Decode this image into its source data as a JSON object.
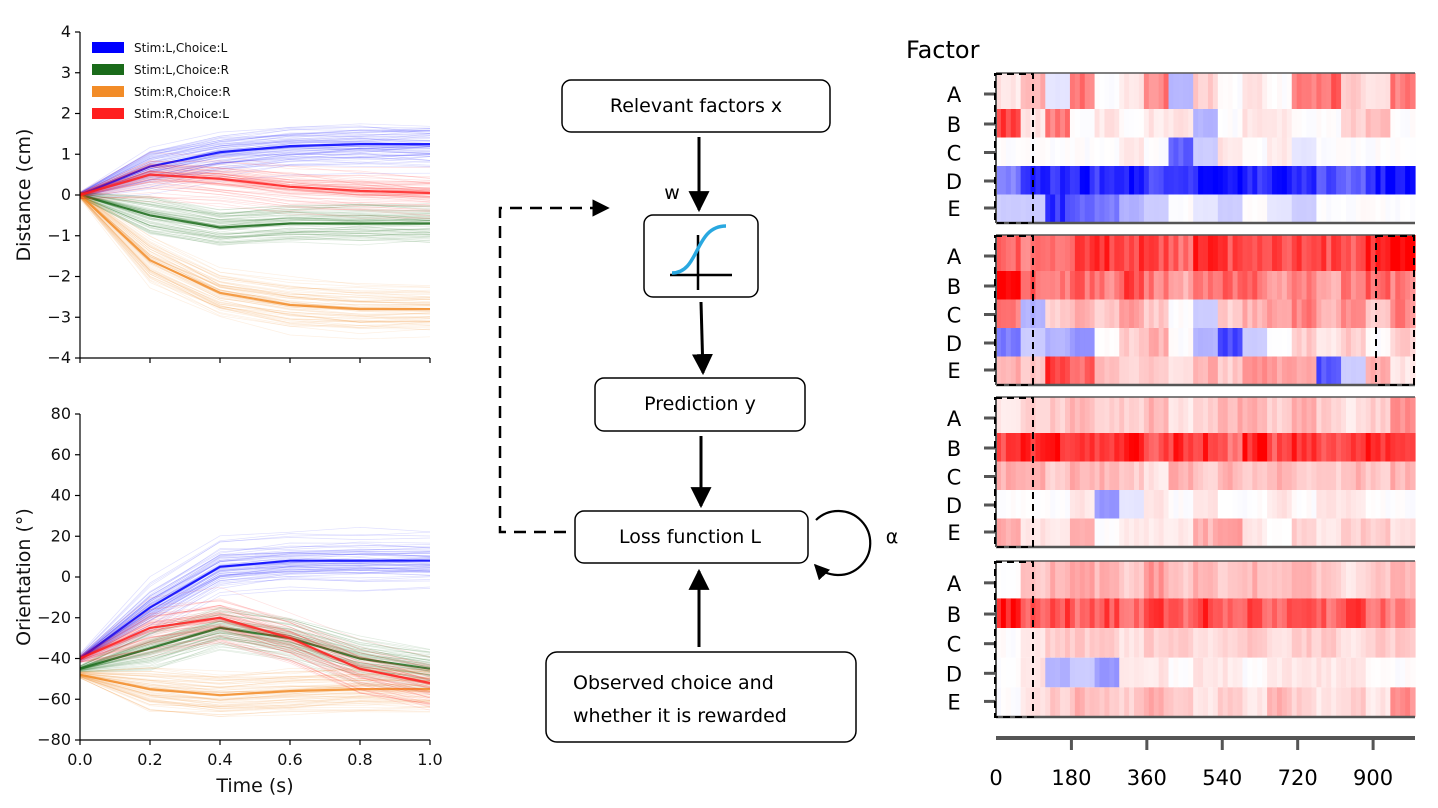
{
  "chart_data": [
    {
      "type": "line",
      "ylabel": "Distance (cm)",
      "xlabel": "",
      "xlim": [
        0.0,
        1.0
      ],
      "ylim": [
        -4,
        4
      ],
      "xticks": [],
      "yticks": [
        "4",
        "3",
        "2",
        "1",
        "0",
        "−1",
        "−2",
        "−3",
        "−4"
      ],
      "legend_position": "top-left",
      "series": [
        {
          "name": "Stim:L,Choice:L",
          "color": "#0000ff",
          "x": [
            0.0,
            0.2,
            0.4,
            0.6,
            0.8,
            1.0
          ],
          "y": [
            0,
            0.7,
            1.05,
            1.2,
            1.25,
            1.25
          ]
        },
        {
          "name": "Stim:L,Choice:R",
          "color": "#1a6b1a",
          "x": [
            0.0,
            0.2,
            0.4,
            0.6,
            0.8,
            1.0
          ],
          "y": [
            0,
            -0.5,
            -0.8,
            -0.7,
            -0.7,
            -0.7
          ]
        },
        {
          "name": "Stim:R,Choice:R",
          "color": "#f28c28",
          "x": [
            0.0,
            0.2,
            0.4,
            0.6,
            0.8,
            1.0
          ],
          "y": [
            0,
            -1.6,
            -2.4,
            -2.7,
            -2.8,
            -2.8
          ]
        },
        {
          "name": "Stim:R,Choice:L",
          "color": "#ff1f1f",
          "x": [
            0.0,
            0.2,
            0.4,
            0.6,
            0.8,
            1.0
          ],
          "y": [
            0,
            0.5,
            0.4,
            0.2,
            0.1,
            0.05
          ]
        }
      ]
    },
    {
      "type": "line",
      "ylabel": "Orientation (°)",
      "xlabel": "Time (s)",
      "xlim": [
        0.0,
        1.0
      ],
      "ylim": [
        -80,
        80
      ],
      "xticks": [
        "0.0",
        "0.2",
        "0.4",
        "0.6",
        "0.8",
        "1.0"
      ],
      "yticks": [
        "80",
        "60",
        "40",
        "20",
        "0",
        "−20",
        "−40",
        "−60",
        "−80"
      ],
      "series": [
        {
          "name": "Stim:L,Choice:L",
          "color": "#0000ff",
          "x": [
            0.0,
            0.2,
            0.4,
            0.6,
            0.8,
            1.0
          ],
          "y": [
            -40,
            -15,
            5,
            8,
            8,
            8
          ]
        },
        {
          "name": "Stim:L,Choice:R",
          "color": "#1a6b1a",
          "x": [
            0.0,
            0.2,
            0.4,
            0.6,
            0.8,
            1.0
          ],
          "y": [
            -45,
            -35,
            -25,
            -30,
            -40,
            -45
          ]
        },
        {
          "name": "Stim:R,Choice:R",
          "color": "#f28c28",
          "x": [
            0.0,
            0.2,
            0.4,
            0.6,
            0.8,
            1.0
          ],
          "y": [
            -48,
            -55,
            -58,
            -56,
            -55,
            -55
          ]
        },
        {
          "name": "Stim:R,Choice:L",
          "color": "#ff1f1f",
          "x": [
            0.0,
            0.2,
            0.4,
            0.6,
            0.8,
            1.0
          ],
          "y": [
            -40,
            -25,
            -20,
            -30,
            -45,
            -52
          ]
        }
      ]
    },
    {
      "type": "heatmap",
      "title": "Factor",
      "factors": [
        "A",
        "B",
        "C",
        "D",
        "E"
      ],
      "xticks": [
        "0",
        "180",
        "360",
        "540",
        "720",
        "900"
      ],
      "xlim": [
        0,
        1000
      ],
      "color_scale": {
        "negative": "#0000ff",
        "zero": "#ffffff",
        "positive": "#ff0000"
      },
      "panels": [
        {
          "rows": [
            [
              0.1,
              0.3,
              -0.1,
              0.5,
              0,
              0.1,
              0.5,
              -0.3,
              0.2,
              0,
              0.1,
              0,
              0.5,
              0.6,
              0.2,
              0.1,
              0.5
            ],
            [
              0.8,
              0.1,
              0.5,
              0,
              0.1,
              0,
              0.1,
              0.1,
              -0.3,
              0,
              0.1,
              0.1,
              0,
              0,
              0.2,
              0.3,
              0
            ],
            [
              0,
              0,
              0,
              0,
              0,
              0.1,
              0,
              -0.6,
              -0.2,
              0.1,
              0,
              0.1,
              -0.1,
              0,
              0,
              0,
              0
            ],
            [
              -0.5,
              -0.9,
              -0.8,
              -0.9,
              -0.8,
              -0.9,
              -0.7,
              -0.8,
              -0.9,
              -0.9,
              -0.8,
              -0.9,
              -0.8,
              -0.7,
              -0.6,
              -0.9,
              -1.0
            ],
            [
              -0.2,
              -0.2,
              -0.8,
              -0.6,
              -0.5,
              -0.3,
              -0.2,
              0,
              -0.1,
              -0.2,
              0,
              -0.1,
              -0.2,
              0,
              0,
              0,
              0
            ]
          ]
        },
        {
          "rows": [
            [
              0.6,
              0.5,
              0.6,
              0.7,
              0.8,
              0.8,
              0.7,
              0.6,
              0.8,
              0.7,
              0.8,
              0.7,
              0.8,
              0.7,
              0.6,
              0.8,
              1.0
            ],
            [
              1.0,
              0.6,
              0.5,
              0.6,
              0.5,
              0.7,
              0.5,
              0.3,
              0.5,
              0.6,
              0.6,
              0.4,
              0.5,
              0.3,
              0.5,
              0.6,
              0.5
            ],
            [
              0.5,
              -0.3,
              0.2,
              0.3,
              0.2,
              0.4,
              0.2,
              0,
              -0.2,
              0.2,
              0.3,
              0.4,
              0.5,
              0.3,
              0.5,
              0.2,
              0.5
            ],
            [
              -0.5,
              -0.2,
              -0.3,
              -0.4,
              0,
              0.2,
              0.3,
              0,
              -0.3,
              -0.7,
              -0.2,
              0,
              0.2,
              0.1,
              0.2,
              0,
              0.2
            ],
            [
              0.3,
              0.2,
              0.8,
              0.6,
              0.3,
              0.2,
              0.2,
              0.1,
              0.3,
              0.2,
              0.5,
              0.4,
              0.4,
              -0.7,
              -0.2,
              0.3,
              0.1
            ]
          ]
        },
        {
          "rows": [
            [
              0.1,
              0.2,
              0.2,
              0.3,
              0.2,
              0.2,
              0.3,
              0.1,
              0.2,
              0.3,
              0.3,
              0.2,
              0.3,
              0.2,
              0.1,
              0.2,
              0.4
            ],
            [
              0.7,
              0.8,
              0.9,
              0.7,
              0.8,
              0.9,
              0.7,
              0.8,
              0.8,
              0.6,
              0.9,
              0.7,
              0.8,
              0.7,
              0.7,
              0.9,
              0.8
            ],
            [
              0.3,
              0.3,
              0.2,
              0.3,
              0.3,
              0.2,
              0.1,
              0.3,
              0.2,
              0.3,
              0.2,
              0.3,
              0.2,
              0.2,
              0.3,
              0.2,
              0.3
            ],
            [
              0,
              0,
              0,
              0.1,
              -0.4,
              -0.1,
              0.1,
              0,
              0.1,
              0,
              0,
              0.1,
              0,
              0.1,
              0.1,
              0,
              0
            ],
            [
              0.3,
              0.1,
              0.1,
              0.3,
              0,
              0.1,
              0.1,
              0.1,
              0.3,
              0.4,
              0.1,
              0,
              0.2,
              0.1,
              0.2,
              0.2,
              0.1
            ]
          ]
        },
        {
          "rows": [
            [
              0,
              0.2,
              0.3,
              0.4,
              0.3,
              0.2,
              0.4,
              0.2,
              0.3,
              0.2,
              0.3,
              0.2,
              0.3,
              0.2,
              0.1,
              0.2,
              0.3
            ],
            [
              0.9,
              0.6,
              0.7,
              0.6,
              0.7,
              0.6,
              0.7,
              0.6,
              0.8,
              0.6,
              0.7,
              0.6,
              0.7,
              0.6,
              0.8,
              0.6,
              0.5
            ],
            [
              0,
              0.1,
              0.2,
              0.2,
              0.2,
              0.1,
              0.2,
              0.2,
              0.1,
              0.2,
              0.2,
              0.1,
              0.2,
              0.2,
              0.1,
              0.2,
              0.2
            ],
            [
              0,
              0.1,
              -0.3,
              -0.2,
              -0.4,
              0.1,
              0.1,
              0,
              0.1,
              0.1,
              0,
              0.1,
              0.1,
              0.1,
              0.1,
              0,
              0
            ],
            [
              0,
              0.1,
              0.2,
              0.3,
              0.2,
              0.2,
              0.3,
              0.2,
              0.1,
              0.2,
              0.1,
              0.3,
              0.2,
              0.1,
              0.2,
              0.1,
              0.5
            ]
          ]
        }
      ]
    }
  ],
  "diagram": {
    "nodes": {
      "relevant_factors": "Relevant factors x",
      "sigmoid": "",
      "prediction": "Prediction y",
      "loss": "Loss function L",
      "observed_line1": "Observed choice and",
      "observed_line2": "whether it is rewarded"
    },
    "labels": {
      "weight": "w",
      "alpha": "α"
    },
    "colors": {
      "sigmoid": "#29a8e0"
    }
  }
}
